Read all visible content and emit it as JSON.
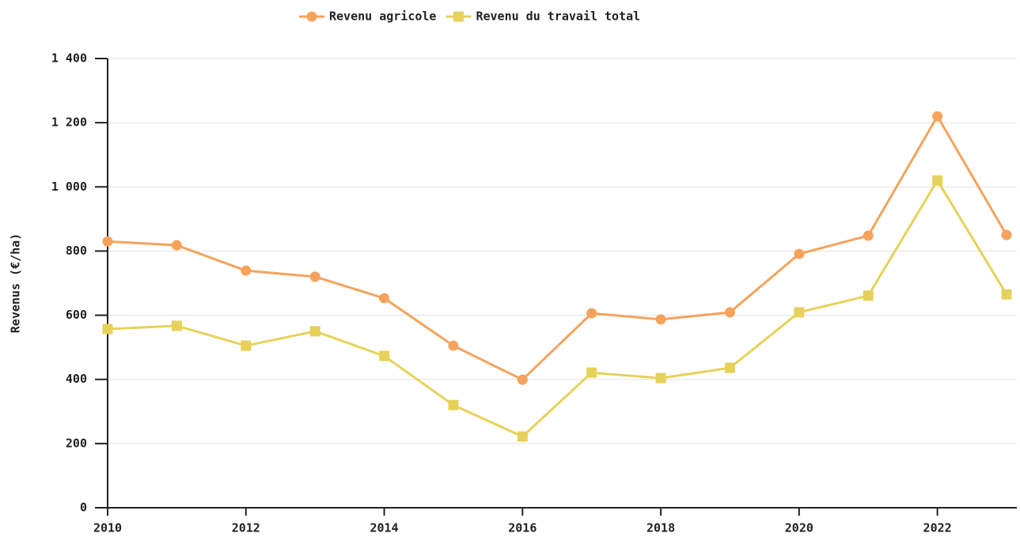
{
  "chart_data": {
    "type": "line",
    "x": [
      2010,
      2011,
      2012,
      2013,
      2014,
      2015,
      2016,
      2017,
      2018,
      2019,
      2020,
      2021,
      2022,
      2023
    ],
    "series": [
      {
        "name": "Revenu agricole",
        "color": "#f5a35c",
        "marker": "circle",
        "values": [
          830,
          818,
          739,
          720,
          653,
          505,
          399,
          606,
          587,
          609,
          791,
          848,
          1220,
          850
        ]
      },
      {
        "name": "Revenu du travail total",
        "color": "#e6d25a",
        "marker": "square",
        "values": [
          557,
          567,
          505,
          550,
          473,
          320,
          222,
          421,
          404,
          436,
          609,
          661,
          1020,
          665
        ]
      }
    ],
    "y_label": "Revenus (€/ha)",
    "xlim": [
      2010,
      2023
    ],
    "xticks": [
      2010,
      2012,
      2014,
      2016,
      2018,
      2020,
      2022
    ],
    "ylim": [
      0,
      1400
    ],
    "yticks": [
      0,
      200,
      400,
      600,
      800,
      {
        "value": 1000,
        "label": "1 000"
      },
      {
        "value": 1200,
        "label": "1 200"
      },
      {
        "value": 1400,
        "label": "1 400"
      }
    ],
    "grid": true,
    "legend": "top"
  }
}
